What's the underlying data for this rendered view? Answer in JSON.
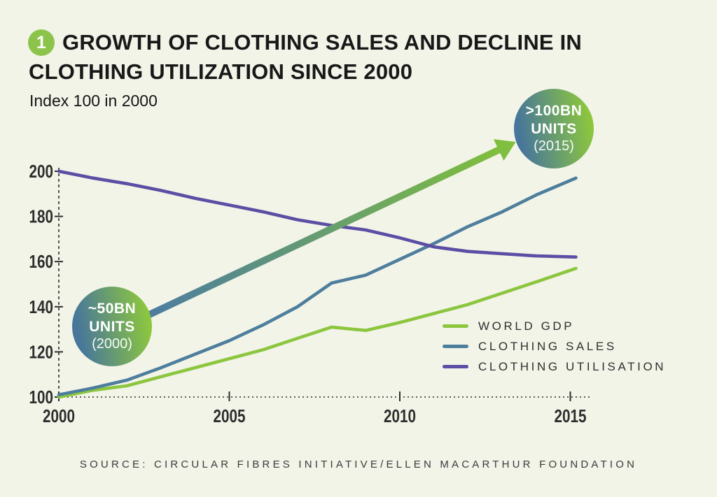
{
  "header": {
    "badge_number": "1",
    "title_lines": [
      "GROWTH OF CLOTHING SALES AND DECLINE IN",
      "CLOTHING UTILIZATION SINCE 2000"
    ],
    "subtitle": "Index 100 in 2000"
  },
  "chart_data": {
    "type": "line",
    "x": [
      2000,
      2001,
      2002,
      2003,
      2004,
      2005,
      2006,
      2007,
      2008,
      2009,
      2010,
      2011,
      2012,
      2013,
      2014,
      2015
    ],
    "series": [
      {
        "name": "WORLD GDP",
        "color": "#8CC63F",
        "values": [
          100,
          103,
          105,
          109,
          113,
          117,
          121,
          126,
          131,
          129.5,
          133,
          137,
          141,
          146,
          151,
          157
        ]
      },
      {
        "name": "CLOTHING SALES",
        "color": "#4E7E9D",
        "values": [
          101,
          104,
          107.5,
          113,
          119,
          125,
          132,
          140,
          150.5,
          154,
          161,
          168,
          175.5,
          182,
          189.5,
          197
        ]
      },
      {
        "name": "CLOTHING UTILISATION",
        "color": "#5B4EA4",
        "values": [
          200,
          197,
          194.5,
          191.5,
          188,
          185,
          182,
          178.5,
          176,
          174,
          170.5,
          166.5,
          164.5,
          163.5,
          162.5,
          162
        ]
      }
    ],
    "title": "GROWTH OF CLOTHING SALES AND DECLINE IN CLOTHING UTILIZATION SINCE 2000",
    "xlabel": "",
    "ylabel": "Index 100 in 2000",
    "x_ticks": [
      2000,
      2005,
      2010,
      2015
    ],
    "y_ticks": [
      100,
      120,
      140,
      160,
      180,
      200
    ],
    "ylim": [
      100,
      205
    ],
    "grid": false,
    "legend_position": "lower right"
  },
  "annotations": {
    "start_badge": {
      "lines": [
        "~50BN",
        "UNITS",
        "(2000)"
      ]
    },
    "end_badge": {
      "lines": [
        ">100BN",
        "UNITS",
        "(2015)"
      ]
    },
    "arrow": {
      "from": {
        "year": 2002.4,
        "value": 134.7
      },
      "to": {
        "year": 2013.4,
        "value": 213
      }
    }
  },
  "source": "SOURCE: CIRCULAR FIBRES INITIATIVE/ELLEN MACARTHUR FOUNDATION",
  "colors": {
    "background": "#F2F4E8",
    "title_text": "#181818",
    "axis": "#2d2d2d",
    "world_gdp_green": "#8CC63F",
    "clothing_sales_blue": "#4E7E9D",
    "clothing_utilisation_purple": "#5B4EA4",
    "arrow_green": "#7FBE3E",
    "badge_gradient_start": "#47769B",
    "badge_gradient_end": "#8CC63F",
    "number_bullet_green": "#8CC44B"
  }
}
